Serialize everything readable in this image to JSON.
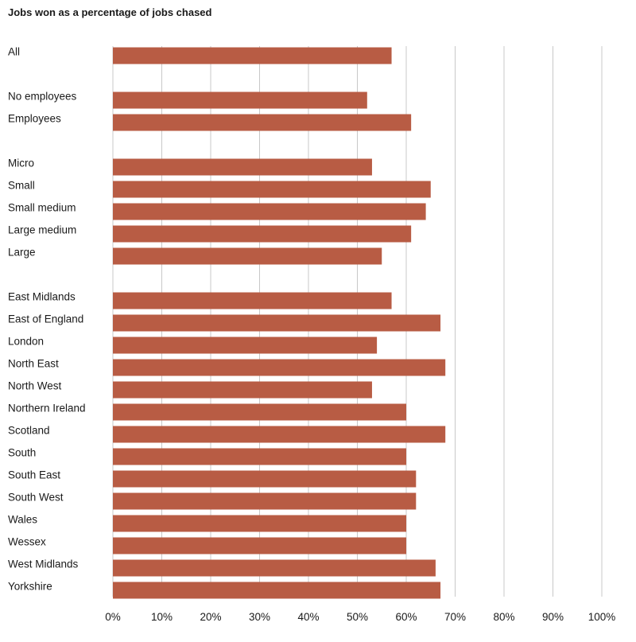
{
  "chart_data": {
    "type": "bar",
    "orientation": "horizontal",
    "title": "Jobs won as a percentage of jobs chased",
    "xlabel": "",
    "ylabel": "",
    "xlim": [
      0,
      100
    ],
    "grid": true,
    "bar_color": "#b85c44",
    "x_ticks": [
      "0%",
      "10%",
      "20%",
      "30%",
      "40%",
      "50%",
      "60%",
      "70%",
      "80%",
      "90%",
      "100%"
    ],
    "groups": [
      {
        "categories": [
          "All"
        ],
        "values": [
          57
        ]
      },
      {
        "categories": [
          "No employees",
          "Employees"
        ],
        "values": [
          52,
          61
        ]
      },
      {
        "categories": [
          "Micro",
          "Small",
          "Small medium",
          "Large medium",
          "Large"
        ],
        "values": [
          53,
          65,
          64,
          61,
          55
        ]
      },
      {
        "categories": [
          "East Midlands",
          "East of England",
          "London",
          "North East",
          "North West",
          "Northern Ireland",
          "Scotland",
          "South",
          "South East",
          "South West",
          "Wales",
          "Wessex",
          "West Midlands",
          "Yorkshire"
        ],
        "values": [
          57,
          67,
          54,
          68,
          53,
          60,
          68,
          60,
          62,
          62,
          60,
          60,
          66,
          67
        ]
      }
    ]
  }
}
